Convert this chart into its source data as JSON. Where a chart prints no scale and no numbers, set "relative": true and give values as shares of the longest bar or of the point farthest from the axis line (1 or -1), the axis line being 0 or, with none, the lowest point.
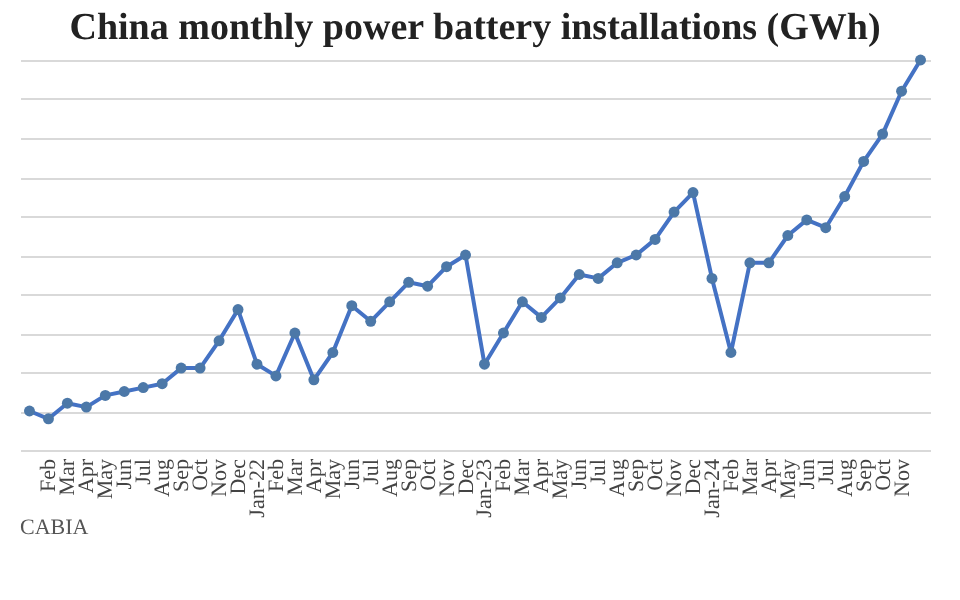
{
  "chart_data": {
    "type": "line",
    "title": "China monthly power battery installations (GWh)",
    "relative": true,
    "categories": [
      null,
      "Feb",
      "Mar",
      "Apr",
      "May",
      "Jun",
      "Jul",
      "Aug",
      "Sep",
      "Oct",
      "Nov",
      "Dec",
      "Jan-22",
      "Feb",
      "Mar",
      "Apr",
      "May",
      "Jun",
      "Jul",
      "Aug",
      "Sep",
      "Oct",
      "Nov",
      "Dec",
      "Jan-23",
      "Feb",
      "Mar",
      "Apr",
      "May",
      "Jun",
      "Jul",
      "Aug",
      "Sep",
      "Oct",
      "Nov",
      "Dec",
      "Jan-24",
      "Feb",
      "Mar",
      "Apr",
      "May",
      "Jun",
      "Jul",
      "Aug",
      "Sep",
      "Oct",
      "Nov",
      null
    ],
    "series": [
      {
        "color": "#4472c4",
        "values": [
          0.1,
          0.08,
          0.12,
          0.11,
          0.14,
          0.15,
          0.16,
          0.17,
          0.21,
          0.21,
          0.28,
          0.36,
          0.22,
          0.19,
          0.3,
          0.18,
          0.25,
          0.37,
          0.33,
          0.38,
          0.43,
          0.42,
          0.47,
          0.5,
          0.22,
          0.3,
          0.38,
          0.34,
          0.39,
          0.45,
          0.44,
          0.48,
          0.5,
          0.54,
          0.61,
          0.66,
          0.44,
          0.25,
          0.48,
          0.48,
          0.55,
          0.59,
          0.57,
          0.65,
          0.74,
          0.81,
          0.92,
          1.0
        ]
      }
    ],
    "grid": "y",
    "marker": "circle",
    "line_style": "solid",
    "annotations": [
      "CABIA"
    ]
  }
}
